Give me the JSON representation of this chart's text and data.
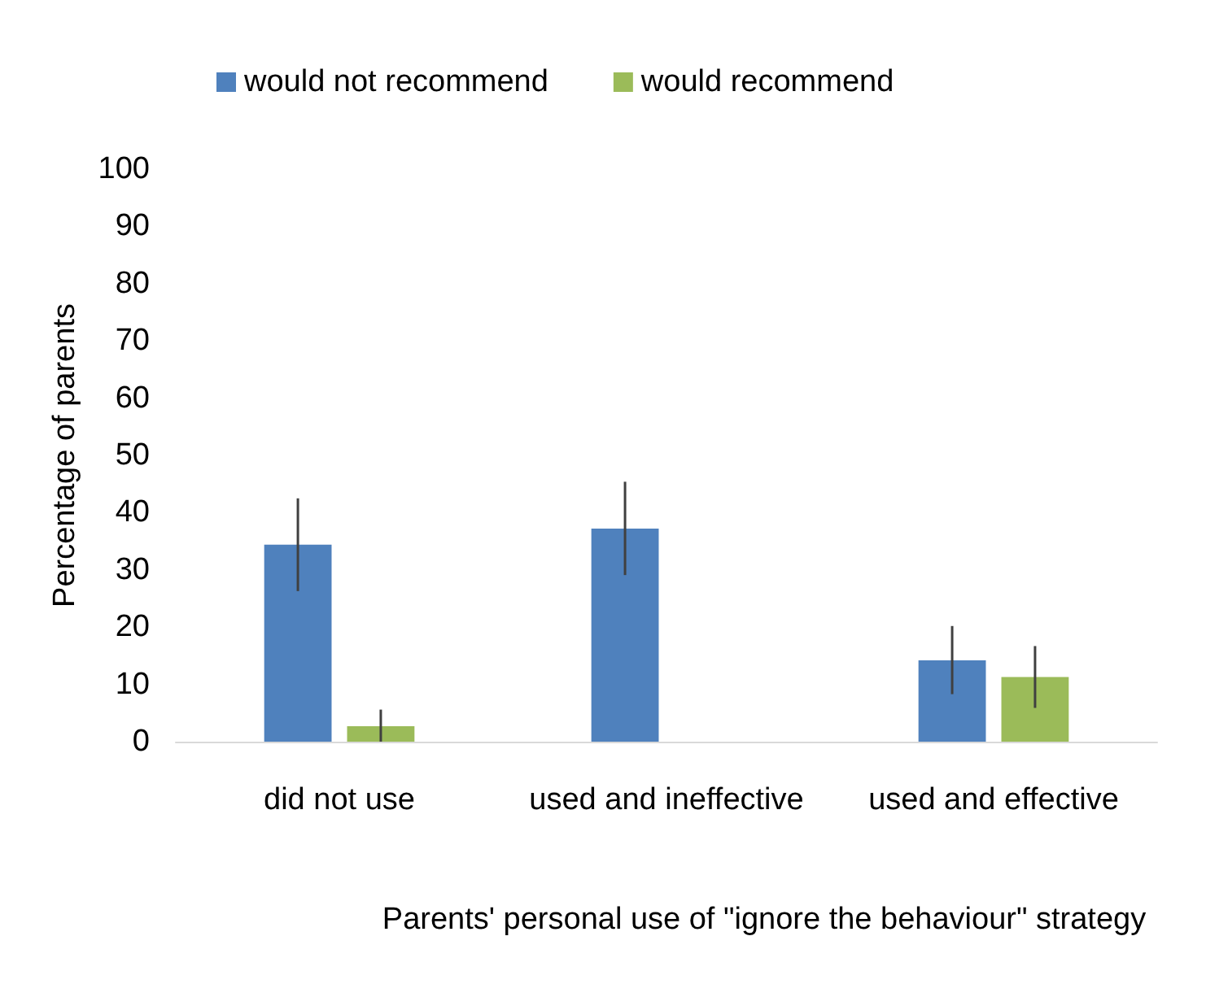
{
  "chart_data": {
    "type": "bar",
    "xlabel": "Parents' personal use of \"ignore the behaviour\" strategy",
    "ylabel": "Percentage of parents",
    "categories": [
      "did not use",
      "used and ineffective",
      "used and effective"
    ],
    "series": [
      {
        "name": "would not recommend",
        "color": "#4f81bd",
        "values": [
          34.4,
          37.2,
          14.2
        ],
        "errors": [
          [
            26.3,
            42.5
          ],
          [
            29.1,
            45.4
          ],
          [
            8.3,
            20.2
          ]
        ]
      },
      {
        "name": "would recommend",
        "color": "#9bbb59",
        "values": [
          2.7,
          0,
          11.3
        ],
        "errors": [
          [
            0,
            5.6
          ],
          null,
          [
            5.9,
            16.7
          ]
        ]
      }
    ],
    "ylim": [
      0,
      100
    ],
    "yticks": [
      0,
      10,
      20,
      30,
      40,
      50,
      60,
      70,
      80,
      90,
      100
    ],
    "grid": false,
    "legend": "top left"
  }
}
